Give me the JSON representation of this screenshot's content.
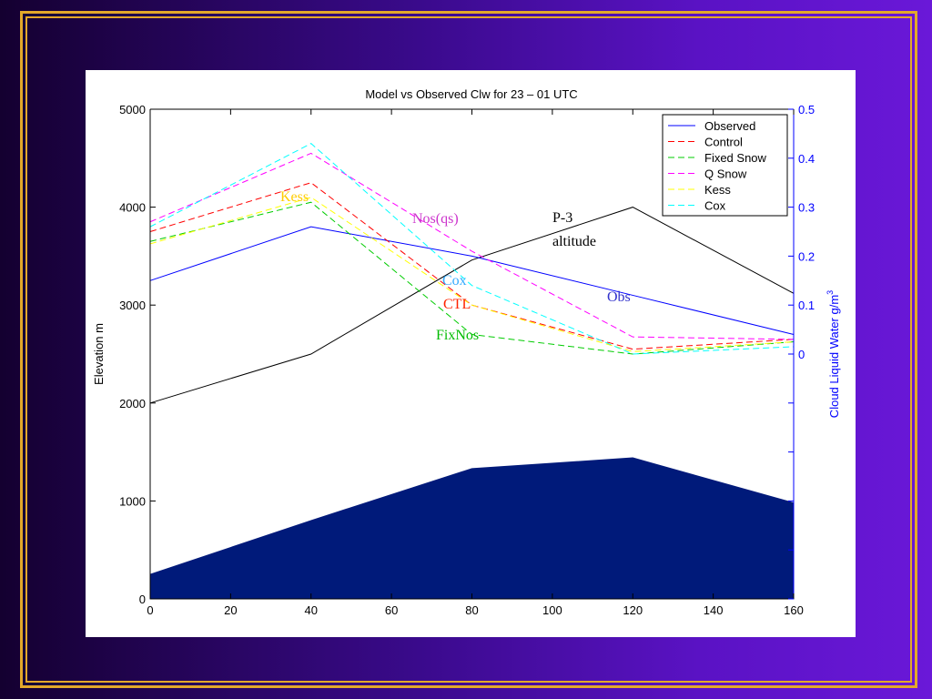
{
  "chart_data": {
    "type": "area",
    "title": "Model vs Observed Clw for 23 – 01 UTC",
    "ylabel": "Elevation m",
    "y2label": "Cloud Liquid Water g/m",
    "y2label_sup": "3",
    "xlim": [
      0,
      160
    ],
    "ylim": [
      0,
      5000
    ],
    "y2lim": [
      -0.5,
      0.5
    ],
    "x_ticks": [
      "0",
      "20",
      "40",
      "60",
      "80",
      "100",
      "120",
      "140",
      "160"
    ],
    "y_ticks": [
      "0",
      "1000",
      "2000",
      "3000",
      "4000",
      "5000"
    ],
    "y2_ticks": [
      "0",
      "0.1",
      "0.2",
      "0.3",
      "0.4",
      "0.5"
    ],
    "x": [
      0,
      40,
      80,
      120,
      160
    ],
    "terrain": {
      "x": [
        0,
        40,
        80,
        120,
        160
      ],
      "elevation": [
        250,
        800,
        1330,
        1440,
        980
      ],
      "color": "#001a7a"
    },
    "altitude_track": {
      "x": [
        0,
        40,
        80,
        120,
        160
      ],
      "elevation": [
        2000,
        2500,
        3460,
        4000,
        3120
      ],
      "color": "#000000"
    },
    "series": [
      {
        "name": "Observed",
        "values": [
          0.15,
          0.26,
          0.2,
          0.12,
          0.04
        ],
        "color": "#0000ff",
        "dash": "solid"
      },
      {
        "name": "Control",
        "values": [
          0.25,
          0.35,
          0.1,
          0.01,
          0.03
        ],
        "color": "#ff0000",
        "dash": "dashed"
      },
      {
        "name": "Fixed Snow",
        "values": [
          0.23,
          0.31,
          0.04,
          0.0,
          0.025
        ],
        "color": "#00cc00",
        "dash": "dashed"
      },
      {
        "name": "Q Snow",
        "values": [
          0.27,
          0.41,
          0.21,
          0.035,
          0.03
        ],
        "color": "#ff00ff",
        "dash": "dashed"
      },
      {
        "name": "Kess",
        "values": [
          0.225,
          0.32,
          0.1,
          0.005,
          0.025
        ],
        "color": "#ffff00",
        "dash": "dashed"
      },
      {
        "name": "Cox",
        "values": [
          0.26,
          0.43,
          0.14,
          0.0,
          0.015
        ],
        "color": "#00ffff",
        "dash": "dashed"
      }
    ],
    "legend_position": "top-right",
    "annotations": [
      {
        "text": "Kess",
        "color": "#ffcc00"
      },
      {
        "text": "Nos(qs)",
        "color": "#cc33cc"
      },
      {
        "text": "P-3",
        "color": "#000000"
      },
      {
        "text": "altitude",
        "color": "#000000"
      },
      {
        "text": "Cox",
        "color": "#33aaff"
      },
      {
        "text": "CTL",
        "color": "#ff2200"
      },
      {
        "text": "Obs",
        "color": "#3333cc"
      },
      {
        "text": "FixNos",
        "color": "#00bb00"
      }
    ],
    "axis_color_right": "#0000ff"
  }
}
